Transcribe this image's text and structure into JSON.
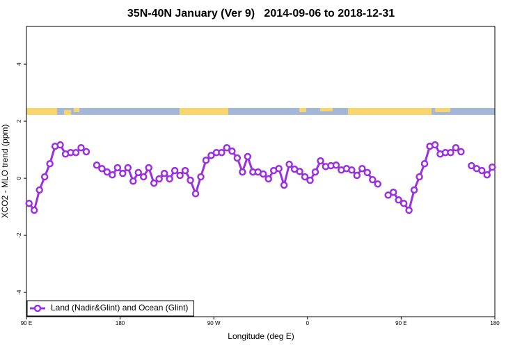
{
  "chart_data": {
    "type": "line",
    "title": "35N-40N January (Ver 9)   2014-09-06 to 2018-12-31",
    "x_label": "Longitude (deg E)",
    "y_label": "XCO2 - MLO trend (ppm)",
    "x": [
      92.5,
      97.5,
      102.5,
      107.5,
      112.5,
      117.5,
      122.5,
      127.5,
      132.5,
      137.5,
      142.5,
      147.5,
      152.5,
      157.5,
      162.5,
      167.5,
      172.5,
      177.5,
      182.5,
      187.5,
      192.5,
      197.5,
      202.5,
      207.5,
      212.5,
      217.5,
      222.5,
      227.5,
      232.5,
      237.5,
      242.5,
      247.5,
      252.5,
      257.5,
      262.5,
      267.5,
      272.5,
      277.5,
      282.5,
      287.5,
      292.5,
      297.5,
      302.5,
      307.5,
      312.5,
      317.5,
      322.5,
      327.5,
      332.5,
      337.5,
      342.5,
      347.5,
      352.5,
      357.5,
      362.5,
      367.5,
      372.5,
      377.5,
      382.5,
      387.5,
      392.5,
      397.5,
      402.5,
      407.5,
      412.5,
      417.5,
      422.5,
      427.5,
      432.5,
      437.5,
      442.5,
      447.5,
      452.5,
      457.5,
      462.5,
      467.5,
      472.5,
      477.5,
      482.5,
      487.5,
      492.5,
      497.5,
      502.5,
      507.5,
      512.5,
      517.5,
      522.5,
      527.5,
      532.5,
      537.5
    ],
    "series": [
      {
        "name": "Land (Nadir&Glint) and Ocean (Glint)",
        "color": "#9b30e0",
        "values": [
          -0.88,
          -1.12,
          -0.41,
          0.05,
          0.51,
          1.12,
          1.17,
          0.85,
          0.9,
          0.9,
          1.07,
          0.93,
          null,
          0.46,
          0.34,
          0.22,
          0.12,
          0.37,
          0.17,
          0.37,
          -0.1,
          0.2,
          0.05,
          0.37,
          -0.17,
          -0.02,
          0.17,
          -0.02,
          0.27,
          0.1,
          0.27,
          -0.07,
          -0.54,
          0.05,
          0.63,
          0.8,
          0.9,
          0.9,
          1.07,
          0.95,
          0.71,
          0.22,
          0.76,
          0.22,
          0.22,
          0.15,
          -0.02,
          0.27,
          0.34,
          -0.24,
          0.49,
          0.32,
          0.24,
          0.05,
          -0.07,
          0.22,
          0.61,
          0.41,
          0.44,
          0.46,
          0.29,
          0.34,
          0.29,
          0.1,
          0.34,
          0.2,
          -0.05,
          -0.2,
          null,
          -0.59,
          -0.49,
          -0.76,
          -0.88,
          -1.12,
          -0.41,
          0.05,
          0.51,
          1.12,
          1.17,
          0.85,
          0.9,
          0.9,
          1.07,
          0.93,
          null,
          0.44,
          0.34,
          0.27,
          0.12,
          0.39
        ]
      }
    ],
    "xlim": [
      90,
      540
    ],
    "xticks": [
      {
        "value": 90,
        "label": "90 E"
      },
      {
        "value": 180,
        "label": "180"
      },
      {
        "value": 270,
        "label": "90 W"
      },
      {
        "value": 360,
        "label": "0"
      },
      {
        "value": 450,
        "label": "90 E"
      },
      {
        "value": 540,
        "label": "180"
      }
    ],
    "ylim": [
      -4.85,
      5.32
    ],
    "yticks": [
      -4,
      -2,
      0,
      2,
      4
    ],
    "legend": "bottomleft"
  }
}
